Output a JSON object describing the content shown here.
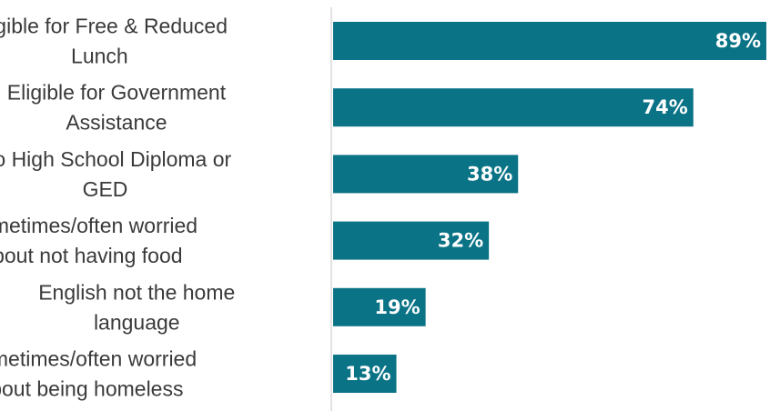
{
  "chart_data": {
    "type": "bar",
    "orientation": "horizontal",
    "categories": [
      [
        "Eligible for Free & Reduced",
        "Lunch"
      ],
      [
        "Eligible for Government",
        "Assistance"
      ],
      [
        "No High School Diploma or",
        "GED"
      ],
      [
        "Sometimes/often worried",
        "about not having food"
      ],
      [
        "English not the home",
        "language"
      ],
      [
        "Sometimes/often worried",
        "about being homeless"
      ]
    ],
    "values": [
      89,
      74,
      38,
      32,
      19,
      13
    ],
    "value_labels": [
      "89%",
      "74%",
      "38%",
      "32%",
      "19%",
      "13%"
    ],
    "xlim": [
      0,
      89
    ],
    "grid": false,
    "legend": "none",
    "bar_color": "#0a7386",
    "axis_color": "#d9d9d9",
    "label_color": "#3a3a3a",
    "value_label_color": "#ffffff"
  }
}
